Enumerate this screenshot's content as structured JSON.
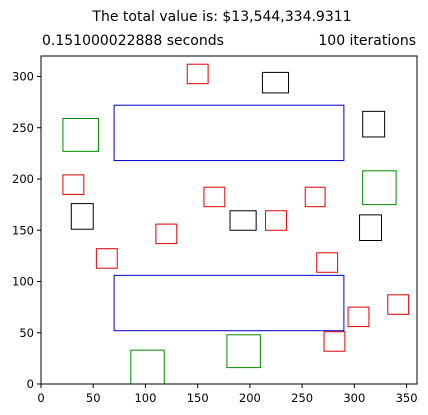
{
  "chart_data": {
    "type": "scatter",
    "title": "The total value is: $13,544,334.9311",
    "left_title": "0.151000022888 seconds",
    "right_title": "100 iterations",
    "xlim": [
      0,
      360
    ],
    "ylim": [
      0,
      320
    ],
    "x_ticks": [
      0,
      50,
      100,
      150,
      200,
      250,
      300,
      350
    ],
    "y_ticks": [
      0,
      50,
      100,
      150,
      200,
      250,
      300
    ],
    "grid": false,
    "colors": {
      "blue": "#0000cc",
      "red": "#dd0000",
      "green": "#008800",
      "black": "#000000"
    },
    "rectangles": [
      {
        "color": "blue",
        "x0": 70,
        "y0": 218,
        "x1": 290,
        "y1": 272
      },
      {
        "color": "blue",
        "x0": 70,
        "y0": 52,
        "x1": 290,
        "y1": 106
      },
      {
        "color": "red",
        "x0": 140,
        "y0": 293,
        "x1": 160,
        "y1": 312
      },
      {
        "color": "black",
        "x0": 212,
        "y0": 284,
        "x1": 237,
        "y1": 304
      },
      {
        "color": "green",
        "x0": 21,
        "y0": 227,
        "x1": 55,
        "y1": 259
      },
      {
        "color": "black",
        "x0": 308,
        "y0": 241,
        "x1": 329,
        "y1": 266
      },
      {
        "color": "red",
        "x0": 21,
        "y0": 185,
        "x1": 41,
        "y1": 204
      },
      {
        "color": "red",
        "x0": 156,
        "y0": 173,
        "x1": 176,
        "y1": 192
      },
      {
        "color": "red",
        "x0": 253,
        "y0": 173,
        "x1": 272,
        "y1": 192
      },
      {
        "color": "green",
        "x0": 308,
        "y0": 175,
        "x1": 340,
        "y1": 208
      },
      {
        "color": "black",
        "x0": 29,
        "y0": 151,
        "x1": 50,
        "y1": 176
      },
      {
        "color": "black",
        "x0": 181,
        "y0": 150,
        "x1": 206,
        "y1": 169
      },
      {
        "color": "red",
        "x0": 215,
        "y0": 150,
        "x1": 235,
        "y1": 169
      },
      {
        "color": "black",
        "x0": 305,
        "y0": 140,
        "x1": 326,
        "y1": 165
      },
      {
        "color": "red",
        "x0": 110,
        "y0": 137,
        "x1": 130,
        "y1": 156
      },
      {
        "color": "red",
        "x0": 53,
        "y0": 113,
        "x1": 73,
        "y1": 132
      },
      {
        "color": "red",
        "x0": 264,
        "y0": 109,
        "x1": 284,
        "y1": 128
      },
      {
        "color": "red",
        "x0": 294,
        "y0": 56,
        "x1": 314,
        "y1": 75
      },
      {
        "color": "red",
        "x0": 332,
        "y0": 68,
        "x1": 352,
        "y1": 87
      },
      {
        "color": "red",
        "x0": 271,
        "y0": 32,
        "x1": 291,
        "y1": 51
      },
      {
        "color": "green",
        "x0": 178,
        "y0": 16,
        "x1": 210,
        "y1": 48
      },
      {
        "color": "green",
        "x0": 86,
        "y0": 0,
        "x1": 118,
        "y1": 33
      }
    ]
  }
}
